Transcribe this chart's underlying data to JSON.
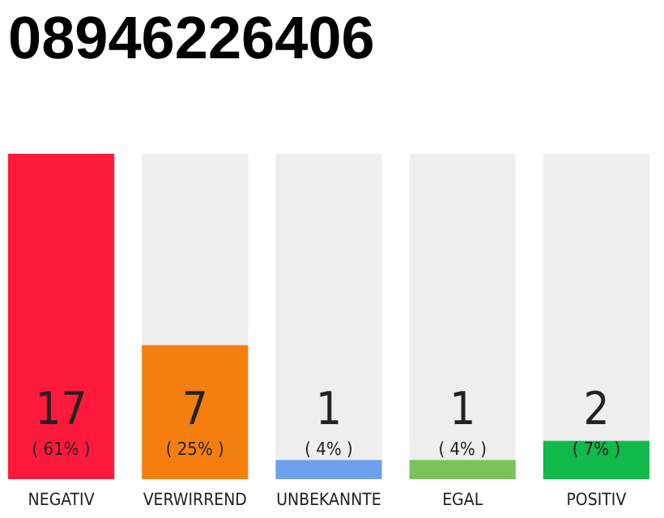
{
  "chart_data": {
    "type": "bar",
    "title": "08946226406",
    "categories": [
      "NEGATIV",
      "VERWIRREND",
      "UNBEKANNTE",
      "EGAL",
      "POSITIV"
    ],
    "values": [
      17,
      7,
      1,
      1,
      2
    ],
    "colors": [
      "#ff1a3c",
      "#f47f0f",
      "#6fa0ec",
      "#7ac35a",
      "#10b94a"
    ],
    "value_labels": [
      "17\n( 61% )",
      "7\n( 25% )",
      "1\n( 4% )",
      "1\n( 4% )",
      "2\n( 7% )"
    ],
    "ylim": [
      0,
      17
    ],
    "tick_labels": "x"
  }
}
